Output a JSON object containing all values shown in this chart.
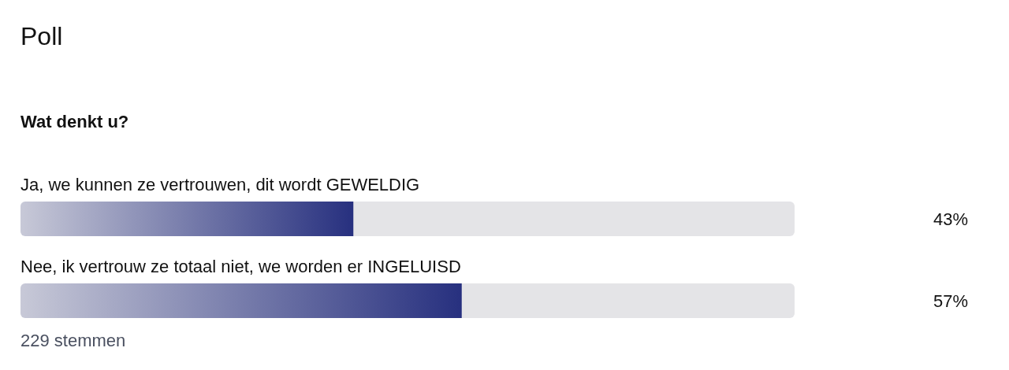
{
  "chart_data": {
    "type": "bar",
    "orientation": "horizontal",
    "title": "Poll",
    "subtitle": "Wat denkt u?",
    "categories": [
      "Ja, we kunnen ze vertrouwen, dit wordt GEWELDIG",
      "Nee, ik vertrouw ze totaal niet, we worden er INGELUISD"
    ],
    "values": [
      43,
      57
    ],
    "value_labels": [
      "43%",
      "57%"
    ],
    "color": "#27307f",
    "xlim": [
      0,
      100
    ],
    "annotations": [
      "229 stemmen"
    ]
  }
}
